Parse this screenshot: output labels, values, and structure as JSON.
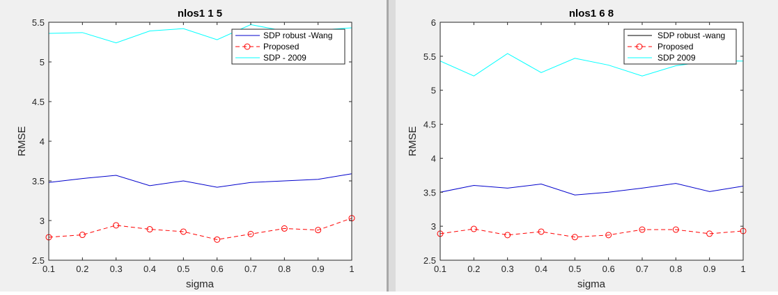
{
  "colors": {
    "figure_bg": "#f0f0f0",
    "axes_bg": "#ffffff",
    "axis": "#262626",
    "divider_dark": "#a8a8a8",
    "divider_light": "#dcdcdc"
  },
  "chart_data": [
    {
      "type": "line",
      "title": "nlos1 1 5",
      "xlabel": "sigma",
      "ylabel": "RMSE",
      "xlim": [
        0.1,
        1
      ],
      "ylim": [
        2.5,
        5.5
      ],
      "xticks": [
        0.1,
        0.2,
        0.3,
        0.4,
        0.5,
        0.6,
        0.7,
        0.8,
        0.9,
        1
      ],
      "xtick_labels": [
        "0.1",
        "0.2",
        "0.3",
        "0.4",
        "0.5",
        "0.6",
        "0.7",
        "0.8",
        "0.9",
        "1"
      ],
      "yticks": [
        2.5,
        3,
        3.5,
        4,
        4.5,
        5,
        5.5
      ],
      "ytick_labels": [
        "2.5",
        "3",
        "3.5",
        "4",
        "4.5",
        "5",
        "5.5"
      ],
      "grid": false,
      "legend_position": "top-right",
      "x": [
        0.1,
        0.2,
        0.3,
        0.4,
        0.5,
        0.6,
        0.7,
        0.8,
        0.9,
        1
      ],
      "series": [
        {
          "name": "SDP robust -Wang",
          "color": "#0000cc",
          "style": "solid",
          "marker": "none",
          "values": [
            3.48,
            3.53,
            3.57,
            3.44,
            3.5,
            3.42,
            3.48,
            3.5,
            3.52,
            3.59
          ]
        },
        {
          "name": "Proposed",
          "color": "#ff0000",
          "style": "dashed",
          "marker": "circle",
          "values": [
            2.79,
            2.82,
            2.94,
            2.89,
            2.86,
            2.76,
            2.83,
            2.9,
            2.88,
            3.03
          ]
        },
        {
          "name": "SDP - 2009",
          "color": "#00ffff",
          "style": "solid",
          "marker": "none",
          "values": [
            5.36,
            5.37,
            5.24,
            5.39,
            5.42,
            5.28,
            5.47,
            5.39,
            5.4,
            5.43
          ]
        }
      ]
    },
    {
      "type": "line",
      "title": "nlos1 6 8",
      "xlabel": "sigma",
      "ylabel": "RMSE",
      "xlim": [
        0.1,
        1
      ],
      "ylim": [
        2.5,
        6
      ],
      "xticks": [
        0.1,
        0.2,
        0.3,
        0.4,
        0.5,
        0.6,
        0.7,
        0.8,
        0.9,
        1
      ],
      "xtick_labels": [
        "0.1",
        "0.2",
        "0.3",
        "0.4",
        "0.5",
        "0.6",
        "0.7",
        "0.8",
        "0.9",
        "1"
      ],
      "yticks": [
        2.5,
        3,
        3.5,
        4,
        4.5,
        5,
        5.5,
        6
      ],
      "ytick_labels": [
        "2.5",
        "3",
        "3.5",
        "4",
        "4.5",
        "5",
        "5.5",
        "6"
      ],
      "grid": false,
      "legend_position": "top-right",
      "x": [
        0.1,
        0.2,
        0.3,
        0.4,
        0.5,
        0.6,
        0.7,
        0.8,
        0.9,
        1
      ],
      "series": [
        {
          "name": "SDP robust -wang",
          "color": "#0000cc",
          "legend_color": "#000000",
          "style": "solid",
          "marker": "none",
          "values": [
            3.5,
            3.6,
            3.56,
            3.62,
            3.46,
            3.5,
            3.56,
            3.63,
            3.51,
            3.59
          ]
        },
        {
          "name": "Proposed",
          "color": "#ff0000",
          "style": "dashed",
          "marker": "circle",
          "values": [
            2.89,
            2.96,
            2.87,
            2.92,
            2.84,
            2.87,
            2.95,
            2.95,
            2.89,
            2.93
          ]
        },
        {
          "name": "SDP 2009",
          "color": "#00ffff",
          "style": "solid",
          "marker": "none",
          "values": [
            5.43,
            5.21,
            5.54,
            5.26,
            5.47,
            5.37,
            5.21,
            5.36,
            5.43,
            5.43
          ]
        }
      ]
    }
  ]
}
